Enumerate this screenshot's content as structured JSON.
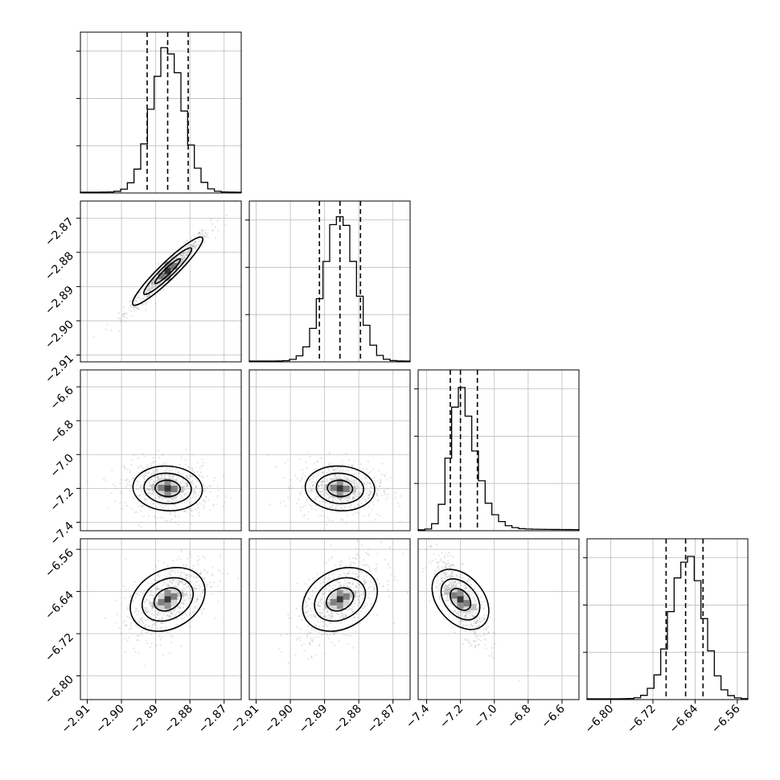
{
  "chart_data": {
    "type": "corner",
    "parameters": [
      {
        "id": "p0",
        "range": [
          -2.912,
          -2.865
        ],
        "ticks": [
          -2.91,
          -2.9,
          -2.89,
          -2.88,
          -2.87
        ],
        "tick_labels": [
          "−2.91",
          "−2.90",
          "−2.89",
          "−2.88",
          "−2.87"
        ],
        "quantiles": [
          -2.8925,
          -2.8865,
          -2.8805
        ],
        "histogram_peak_center": -2.8865,
        "histogram_sigma": 0.0046
      },
      {
        "id": "p1",
        "range": [
          -2.912,
          -2.865
        ],
        "ticks": [
          -2.91,
          -2.9,
          -2.89,
          -2.88,
          -2.87
        ],
        "tick_labels": [
          "−2.91",
          "−2.90",
          "−2.89",
          "−2.88",
          "−2.87"
        ],
        "quantiles": [
          -2.8915,
          -2.8855,
          -2.8795
        ],
        "histogram_peak_center": -2.8855,
        "histogram_sigma": 0.0046
      },
      {
        "id": "p2",
        "range": [
          -7.45,
          -6.5
        ],
        "ticks": [
          -7.4,
          -7.2,
          -7.0,
          -6.8,
          -6.6
        ],
        "tick_labels": [
          "−7.4",
          "−7.2",
          "−7.0",
          "−6.8",
          "−6.6"
        ],
        "quantiles": [
          -7.26,
          -7.2,
          -7.1
        ],
        "histogram_peak_center": -7.2,
        "histogram_sigma": 0.06
      },
      {
        "id": "p3",
        "range": [
          -6.845,
          -6.54
        ],
        "ticks": [
          -6.8,
          -6.72,
          -6.64,
          -6.56
        ],
        "tick_labels": [
          "−6.80",
          "−6.72",
          "−6.64",
          "−6.56"
        ],
        "quantiles": [
          -6.695,
          -6.658,
          -6.625
        ],
        "histogram_peak_center": -6.655,
        "histogram_sigma": 0.03
      }
    ],
    "bottom_axis_order": [
      "p0",
      "p1",
      "p2",
      "p3"
    ],
    "left_axis_order": [
      "p1",
      "p2",
      "p3"
    ],
    "grid": true,
    "title": "",
    "xlabel": "",
    "ylabel": ""
  }
}
